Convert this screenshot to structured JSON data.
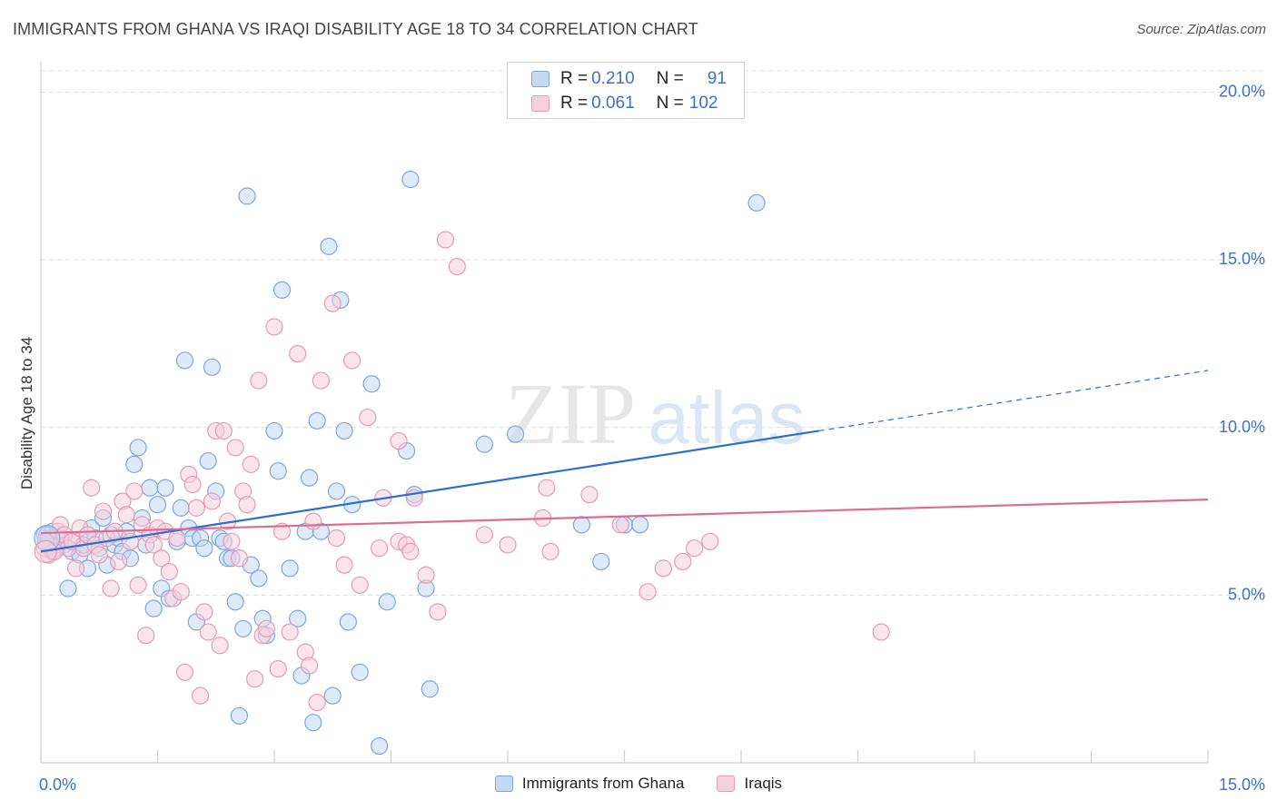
{
  "title": "IMMIGRANTS FROM GHANA VS IRAQI DISABILITY AGE 18 TO 34 CORRELATION CHART",
  "source": "Source: ZipAtlas.com",
  "watermark": {
    "zip": "ZIP",
    "atlas": "atlas"
  },
  "legend_top": {
    "rows": [
      {
        "r_label": "R =",
        "r_value": "0.210",
        "n_label": "N =",
        "n_value": "91"
      },
      {
        "r_label": "R =",
        "r_value": "0.061",
        "n_label": "N =",
        "n_value": "102"
      }
    ]
  },
  "chart_data": {
    "type": "scatter",
    "title": "IMMIGRANTS FROM GHANA VS IRAQI DISABILITY AGE 18 TO 34 CORRELATION CHART",
    "xlabel": "",
    "ylabel": "Disability Age 18 to 34",
    "xlim": [
      0,
      15
    ],
    "ylim": [
      0,
      20.8
    ],
    "x_tick_labels": [
      "0.0%",
      "15.0%"
    ],
    "y_ticks": [
      5,
      10,
      15,
      20
    ],
    "y_tick_labels": [
      "5.0%",
      "10.0%",
      "15.0%",
      "20.0%"
    ],
    "grid": true,
    "legend_position": "bottom-center",
    "series": [
      {
        "name": "Immigrants from Ghana",
        "color": "#7ba7e0",
        "fill": "#c5d9f2",
        "line_color": "#2a6fd1",
        "trend": {
          "x0": 0,
          "y0": 6.3,
          "x1": 10.0,
          "y1": 9.9,
          "dash_to_x": 15,
          "dash_to_y": 11.7
        },
        "points": [
          [
            0.05,
            6.8
          ],
          [
            0.1,
            6.6
          ],
          [
            0.15,
            6.9
          ],
          [
            0.2,
            6.4
          ],
          [
            0.25,
            6.7
          ],
          [
            0.3,
            6.5
          ],
          [
            0.35,
            5.2
          ],
          [
            0.4,
            6.3
          ],
          [
            0.45,
            6.6
          ],
          [
            0.5,
            6.2
          ],
          [
            0.55,
            6.5
          ],
          [
            0.6,
            5.8
          ],
          [
            0.65,
            7.0
          ],
          [
            0.7,
            6.7
          ],
          [
            0.75,
            6.4
          ],
          [
            0.8,
            7.3
          ],
          [
            0.85,
            5.9
          ],
          [
            0.9,
            6.8
          ],
          [
            0.95,
            6.5
          ],
          [
            1.0,
            6.7
          ],
          [
            1.05,
            6.3
          ],
          [
            1.1,
            6.9
          ],
          [
            1.15,
            6.1
          ],
          [
            1.2,
            8.9
          ],
          [
            1.25,
            9.4
          ],
          [
            1.3,
            7.3
          ],
          [
            1.35,
            6.5
          ],
          [
            1.4,
            8.2
          ],
          [
            1.45,
            4.6
          ],
          [
            1.5,
            7.7
          ],
          [
            1.55,
            5.2
          ],
          [
            1.6,
            8.2
          ],
          [
            1.65,
            4.9
          ],
          [
            1.75,
            6.6
          ],
          [
            1.8,
            7.6
          ],
          [
            1.85,
            12.0
          ],
          [
            1.9,
            7.0
          ],
          [
            1.95,
            6.7
          ],
          [
            2.0,
            4.2
          ],
          [
            2.05,
            6.7
          ],
          [
            2.1,
            6.4
          ],
          [
            2.15,
            9.0
          ],
          [
            2.2,
            11.8
          ],
          [
            2.25,
            8.1
          ],
          [
            2.3,
            6.7
          ],
          [
            2.35,
            6.6
          ],
          [
            2.4,
            6.1
          ],
          [
            2.45,
            6.1
          ],
          [
            2.5,
            4.8
          ],
          [
            2.55,
            1.4
          ],
          [
            2.6,
            4.0
          ],
          [
            2.65,
            16.9
          ],
          [
            2.7,
            5.9
          ],
          [
            2.8,
            5.5
          ],
          [
            2.85,
            4.3
          ],
          [
            2.9,
            3.8
          ],
          [
            3.0,
            9.9
          ],
          [
            3.05,
            8.7
          ],
          [
            3.1,
            14.1
          ],
          [
            3.2,
            5.8
          ],
          [
            3.3,
            4.3
          ],
          [
            3.35,
            2.6
          ],
          [
            3.4,
            6.9
          ],
          [
            3.45,
            8.5
          ],
          [
            3.5,
            1.2
          ],
          [
            3.55,
            10.2
          ],
          [
            3.6,
            6.9
          ],
          [
            3.7,
            15.4
          ],
          [
            3.75,
            2.0
          ],
          [
            3.8,
            8.1
          ],
          [
            3.85,
            13.8
          ],
          [
            3.9,
            9.9
          ],
          [
            3.95,
            4.2
          ],
          [
            4.0,
            7.7
          ],
          [
            4.1,
            2.7
          ],
          [
            4.25,
            11.3
          ],
          [
            4.35,
            0.5
          ],
          [
            4.45,
            4.8
          ],
          [
            4.7,
            9.3
          ],
          [
            4.75,
            17.4
          ],
          [
            4.8,
            8.0
          ],
          [
            4.95,
            5.2
          ],
          [
            5.0,
            2.2
          ],
          [
            5.7,
            9.5
          ],
          [
            6.1,
            9.8
          ],
          [
            6.95,
            7.1
          ],
          [
            7.2,
            6.0
          ],
          [
            7.5,
            7.1
          ],
          [
            7.7,
            7.1
          ],
          [
            9.2,
            16.7
          ],
          [
            0.08,
            6.8
          ]
        ]
      },
      {
        "name": "Iraqis",
        "color": "#e89ab5",
        "fill": "#f6cfdc",
        "line_color": "#e06a96",
        "trend": {
          "x0": 0,
          "y0": 6.85,
          "x1": 15,
          "y1": 7.85
        },
        "points": [
          [
            0.05,
            6.4
          ],
          [
            0.1,
            6.2
          ],
          [
            0.12,
            6.7
          ],
          [
            0.15,
            6.3
          ],
          [
            0.2,
            6.5
          ],
          [
            0.22,
            6.9
          ],
          [
            0.25,
            7.1
          ],
          [
            0.3,
            6.8
          ],
          [
            0.35,
            6.4
          ],
          [
            0.4,
            6.6
          ],
          [
            0.45,
            5.8
          ],
          [
            0.5,
            7.0
          ],
          [
            0.55,
            6.4
          ],
          [
            0.6,
            6.8
          ],
          [
            0.65,
            8.2
          ],
          [
            0.7,
            6.5
          ],
          [
            0.75,
            6.2
          ],
          [
            0.8,
            7.5
          ],
          [
            0.85,
            6.7
          ],
          [
            0.9,
            5.2
          ],
          [
            0.95,
            6.9
          ],
          [
            1.0,
            6.0
          ],
          [
            1.05,
            7.8
          ],
          [
            1.1,
            7.4
          ],
          [
            1.15,
            6.6
          ],
          [
            1.2,
            8.1
          ],
          [
            1.25,
            5.3
          ],
          [
            1.3,
            7.1
          ],
          [
            1.35,
            3.8
          ],
          [
            1.4,
            6.8
          ],
          [
            1.45,
            6.5
          ],
          [
            1.5,
            7.0
          ],
          [
            1.55,
            6.1
          ],
          [
            1.6,
            6.9
          ],
          [
            1.65,
            5.7
          ],
          [
            1.7,
            4.9
          ],
          [
            1.75,
            6.7
          ],
          [
            1.8,
            5.1
          ],
          [
            1.85,
            2.7
          ],
          [
            1.9,
            8.6
          ],
          [
            1.95,
            8.3
          ],
          [
            2.0,
            7.6
          ],
          [
            2.05,
            2.0
          ],
          [
            2.1,
            4.5
          ],
          [
            2.15,
            3.9
          ],
          [
            2.2,
            7.8
          ],
          [
            2.25,
            9.9
          ],
          [
            2.3,
            3.5
          ],
          [
            2.35,
            9.9
          ],
          [
            2.4,
            7.2
          ],
          [
            2.45,
            6.6
          ],
          [
            2.5,
            9.4
          ],
          [
            2.55,
            6.1
          ],
          [
            2.6,
            8.1
          ],
          [
            2.65,
            7.7
          ],
          [
            2.7,
            8.9
          ],
          [
            2.75,
            2.5
          ],
          [
            2.8,
            11.4
          ],
          [
            2.85,
            3.8
          ],
          [
            2.9,
            4.0
          ],
          [
            3.0,
            13.0
          ],
          [
            3.05,
            2.8
          ],
          [
            3.1,
            6.9
          ],
          [
            3.2,
            3.9
          ],
          [
            3.3,
            12.2
          ],
          [
            3.4,
            3.3
          ],
          [
            3.45,
            2.9
          ],
          [
            3.5,
            7.2
          ],
          [
            3.55,
            1.8
          ],
          [
            3.6,
            11.4
          ],
          [
            3.75,
            13.7
          ],
          [
            3.8,
            6.7
          ],
          [
            3.9,
            5.9
          ],
          [
            4.0,
            12.0
          ],
          [
            4.1,
            5.3
          ],
          [
            4.2,
            10.3
          ],
          [
            4.35,
            6.4
          ],
          [
            4.4,
            7.9
          ],
          [
            4.6,
            9.6
          ],
          [
            4.6,
            6.6
          ],
          [
            4.7,
            6.5
          ],
          [
            4.75,
            6.3
          ],
          [
            4.8,
            7.9
          ],
          [
            4.95,
            5.6
          ],
          [
            5.1,
            4.5
          ],
          [
            5.2,
            15.6
          ],
          [
            5.35,
            14.8
          ],
          [
            5.7,
            6.8
          ],
          [
            6.0,
            6.5
          ],
          [
            6.45,
            7.3
          ],
          [
            6.5,
            8.2
          ],
          [
            6.55,
            6.3
          ],
          [
            7.05,
            8.0
          ],
          [
            7.45,
            7.1
          ],
          [
            7.8,
            5.1
          ],
          [
            8.0,
            5.8
          ],
          [
            8.25,
            6.0
          ],
          [
            8.4,
            6.4
          ],
          [
            8.6,
            6.6
          ],
          [
            10.8,
            3.9
          ],
          [
            0.06,
            6.6
          ],
          [
            0.18,
            6.3
          ]
        ]
      }
    ]
  }
}
